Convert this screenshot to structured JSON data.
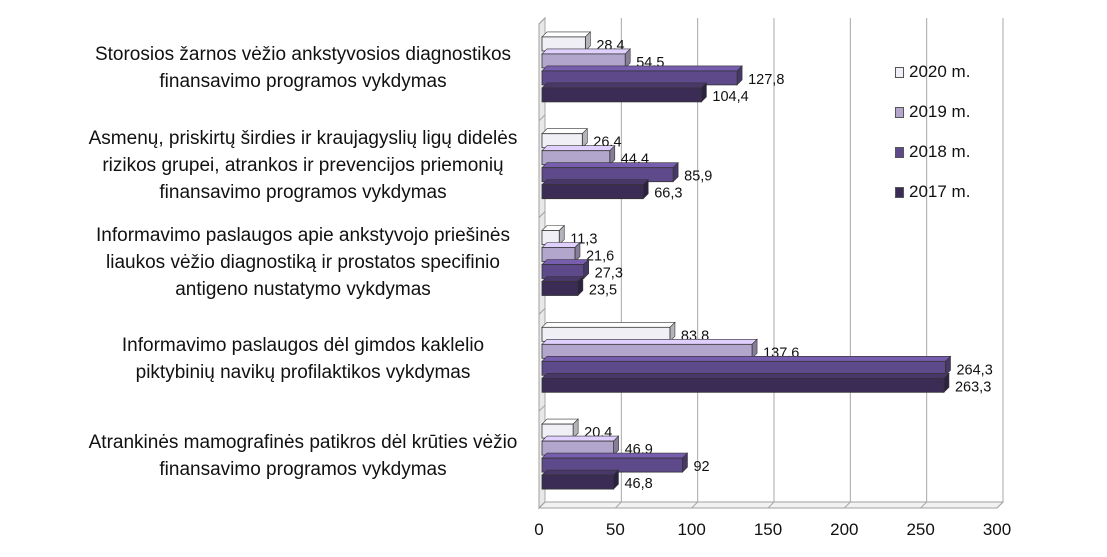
{
  "chart_data": {
    "type": "bar",
    "orientation": "horizontal",
    "style": "3d-clustered",
    "categories": [
      [
        "Storosios žarnos vėžio ankstyvosios diagnostikos",
        "finansavimo programos vykdymas"
      ],
      [
        "Asmenų, priskirtų širdies ir kraujagyslių ligų didelės",
        "rizikos grupei, atrankos ir prevencijos priemonių",
        "finansavimo programos vykdymas"
      ],
      [
        "Informavimo paslaugos apie ankstyvojo priešinės",
        "liaukos vėžio diagnostiką ir prostatos specifinio",
        "antigeno nustatymo vykdymas"
      ],
      [
        "Informavimo paslaugos dėl gimdos kaklelio",
        "piktybinių navikų profilaktikos vykdymas"
      ],
      [
        "Atrankinės mamografinės patikros dėl krūties vėžio",
        "finansavimo programos vykdymas"
      ]
    ],
    "series": [
      {
        "name": "2020 m.",
        "color": "#f1eff6",
        "values": [
          28.4,
          26.4,
          11.3,
          83.8,
          20.4
        ],
        "labels": [
          "28,4",
          "26,4",
          "11,3",
          "83,8",
          "20,4"
        ]
      },
      {
        "name": "2019 m.",
        "color": "#b3a6cc",
        "values": [
          54.5,
          44.4,
          21.6,
          137.6,
          46.9
        ],
        "labels": [
          "54,5",
          "44,4",
          "21,6",
          "137,6",
          "46,9"
        ]
      },
      {
        "name": "2018 m.",
        "color": "#5e4a8a",
        "values": [
          127.8,
          85.9,
          27.3,
          264.3,
          92
        ],
        "labels": [
          "127,8",
          "85,9",
          "27,3",
          "264,3",
          "92"
        ]
      },
      {
        "name": "2017 m.",
        "color": "#3b2c55",
        "values": [
          104.4,
          66.3,
          23.5,
          263.3,
          46.8
        ],
        "labels": [
          "104,4",
          "66,3",
          "23,5",
          "263,3",
          "46,8"
        ]
      }
    ],
    "xlim": [
      0,
      300
    ],
    "xticks": [
      "0",
      "50",
      "100",
      "150",
      "200",
      "250",
      "300"
    ],
    "grid": true,
    "legend_position": "right"
  }
}
